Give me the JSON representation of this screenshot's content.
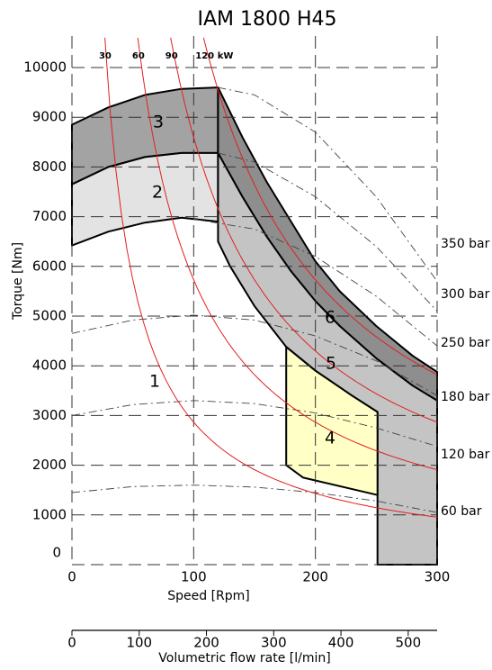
{
  "chart_data": {
    "type": "area",
    "title": "IAM 1800 H45",
    "xlabel": "Speed [Rpm]",
    "ylabel": "Torque [Nm]",
    "x2label": "Volumetric flow rate [l/min]",
    "xlim": [
      0,
      300
    ],
    "xticks": [
      0,
      100,
      200,
      300
    ],
    "ylim": [
      0,
      10000
    ],
    "yticks": [
      0,
      1000,
      2000,
      3000,
      4000,
      5000,
      6000,
      7000,
      8000,
      9000,
      10000
    ],
    "x2lim": [
      0,
      543
    ],
    "x2ticks": [
      0,
      100,
      200,
      300,
      400,
      500
    ],
    "grid": true,
    "power_kw": [
      30,
      60,
      90,
      120
    ],
    "power_unit": "kW",
    "power_color": "#e02020",
    "annotations": [
      "1",
      "2",
      "3",
      "4",
      "5",
      "6"
    ],
    "regions": [
      {
        "color": "#a3a3a3",
        "x": [
          0,
          30,
          60,
          90,
          120,
          120,
          90,
          60,
          30,
          0
        ],
        "values": [
          8850,
          9200,
          9450,
          9570,
          9600,
          8280,
          8280,
          8200,
          8000,
          7650
        ]
      },
      {
        "color": "#e3e3e3",
        "x": [
          0,
          30,
          60,
          90,
          120,
          120,
          90,
          60,
          30,
          0
        ],
        "values": [
          7650,
          8000,
          8200,
          8280,
          8280,
          6900,
          6980,
          6880,
          6700,
          6420
        ]
      },
      {
        "color": "#8e8e8e",
        "x": [
          120,
          140,
          160,
          180,
          200,
          220,
          250,
          280,
          300,
          300,
          280,
          250,
          220,
          200,
          180,
          160,
          140,
          120
        ],
        "values": [
          9600,
          8600,
          7700,
          6900,
          6100,
          5500,
          4800,
          4200,
          3877,
          3300,
          3600,
          4150,
          4800,
          5300,
          5900,
          6600,
          7400,
          8280
        ]
      },
      {
        "color": "#c4c4c4",
        "x": [
          120,
          140,
          160,
          180,
          200,
          220,
          250,
          280,
          300,
          300,
          251,
          251,
          230,
          200,
          176,
          150,
          130,
          120
        ],
        "values": [
          8280,
          7400,
          6600,
          5900,
          5300,
          4800,
          4150,
          3600,
          3300,
          0,
          0,
          3070,
          3400,
          3900,
          4380,
          5200,
          6000,
          6500
        ]
      },
      {
        "color": "#ffffc6",
        "x": [
          176,
          200,
          230,
          251,
          251,
          190,
          176
        ],
        "values": [
          4380,
          3900,
          3400,
          3070,
          1400,
          1750,
          2000
        ]
      }
    ],
    "series": [
      {
        "name": "60 bar",
        "x": [
          0,
          50,
          100,
          150,
          200,
          250,
          300
        ],
        "values": [
          1450,
          1570,
          1600,
          1560,
          1450,
          1280,
          1050
        ]
      },
      {
        "name": "120 bar",
        "x": [
          0,
          50,
          100,
          150,
          200,
          250,
          300
        ],
        "values": [
          3000,
          3220,
          3300,
          3240,
          3050,
          2750,
          2380
        ]
      },
      {
        "name": "180 bar",
        "x": [
          0,
          50,
          100,
          150,
          200,
          250,
          300
        ],
        "values": [
          4650,
          4920,
          5020,
          4920,
          4600,
          4100,
          3400
        ]
      },
      {
        "name": "250 bar",
        "x": [
          100,
          150,
          200,
          250,
          300
        ],
        "values": [
          6950,
          6750,
          6200,
          5400,
          4400
        ]
      },
      {
        "name": "300 bar",
        "x": [
          120,
          150,
          200,
          250,
          300
        ],
        "values": [
          8280,
          8100,
          7400,
          6400,
          5100
        ]
      },
      {
        "name": "350 bar",
        "x": [
          120,
          150,
          200,
          250,
          300
        ],
        "values": [
          9600,
          9450,
          8700,
          7400,
          5700
        ]
      }
    ]
  }
}
